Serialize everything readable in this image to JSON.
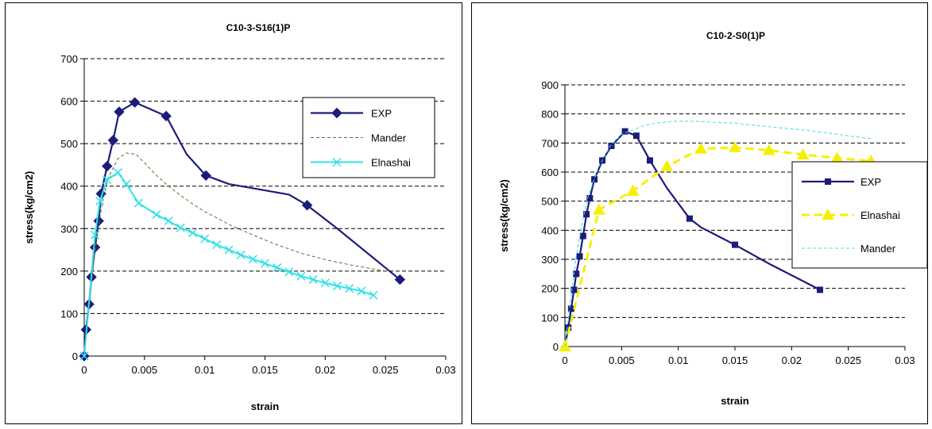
{
  "chart_data": [
    {
      "type": "line",
      "title": "C10-3-S16(1)P",
      "xlabel": "strain",
      "ylabel": "stress(kg/cm2)",
      "xlim": [
        0,
        0.03
      ],
      "ylim": [
        0,
        700
      ],
      "x_ticks": [
        "0",
        "0.005",
        "0.01",
        "0.015",
        "0.02",
        "0.025",
        "0.03"
      ],
      "y_ticks": [
        "0",
        "100",
        "200",
        "300",
        "400",
        "500",
        "600",
        "700"
      ],
      "grid": "horizontal dashed",
      "legend_position": "right",
      "legend": [
        "EXP",
        "Mander",
        "Elnashai"
      ],
      "series": [
        {
          "name": "EXP",
          "color": "#1c1c7a",
          "marker": "diamond",
          "points": [
            [
              0,
              0
            ],
            [
              0.00015,
              62
            ],
            [
              0.0004,
              122
            ],
            [
              0.0006,
              186
            ],
            [
              0.0009,
              256
            ],
            [
              0.0012,
              318
            ],
            [
              0.0014,
              382
            ],
            [
              0.0019,
              447
            ],
            [
              0.0024,
              508
            ],
            [
              0.0029,
              575
            ],
            [
              0.0042,
              597
            ],
            [
              0.0068,
              565
            ],
            [
              0.0085,
              475
            ],
            [
              0.0101,
              425
            ],
            [
              0.012,
              405
            ],
            [
              0.015,
              390
            ],
            [
              0.017,
              380
            ],
            [
              0.0185,
              355
            ],
            [
              0.021,
              300
            ],
            [
              0.0262,
              180
            ]
          ],
          "marker_points": [
            [
              0,
              0
            ],
            [
              0.00015,
              62
            ],
            [
              0.0004,
              122
            ],
            [
              0.0006,
              186
            ],
            [
              0.0009,
              256
            ],
            [
              0.0012,
              318
            ],
            [
              0.0014,
              382
            ],
            [
              0.0019,
              447
            ],
            [
              0.0024,
              508
            ],
            [
              0.0029,
              575
            ],
            [
              0.0042,
              597
            ],
            [
              0.0068,
              565
            ],
            [
              0.0101,
              425
            ],
            [
              0.0185,
              355
            ],
            [
              0.0262,
              180
            ]
          ]
        },
        {
          "name": "Mander",
          "color": "#6b6b2e",
          "marker": "none",
          "points": [
            [
              0,
              0
            ],
            [
              0.0005,
              150
            ],
            [
              0.001,
              270
            ],
            [
              0.0015,
              360
            ],
            [
              0.002,
              420
            ],
            [
              0.0028,
              465
            ],
            [
              0.0035,
              478
            ],
            [
              0.0043,
              475
            ],
            [
              0.005,
              455
            ],
            [
              0.006,
              425
            ],
            [
              0.007,
              400
            ],
            [
              0.008,
              378
            ],
            [
              0.009,
              358
            ],
            [
              0.01,
              340
            ],
            [
              0.012,
              310
            ],
            [
              0.014,
              285
            ],
            [
              0.016,
              262
            ],
            [
              0.018,
              242
            ],
            [
              0.02,
              227
            ],
            [
              0.022,
              215
            ],
            [
              0.025,
              200
            ]
          ]
        },
        {
          "name": "Elnashai",
          "color": "#33e0e8",
          "marker": "x",
          "points": [
            [
              0,
              0
            ],
            [
              0.0009,
              285
            ],
            [
              0.0013,
              365
            ],
            [
              0.0019,
              415
            ],
            [
              0.0028,
              432
            ],
            [
              0.0035,
              405
            ],
            [
              0.0045,
              360
            ],
            [
              0.006,
              333
            ],
            [
              0.007,
              318
            ],
            [
              0.008,
              302
            ],
            [
              0.009,
              290
            ],
            [
              0.01,
              276
            ],
            [
              0.011,
              262
            ],
            [
              0.012,
              250
            ],
            [
              0.013,
              238
            ],
            [
              0.014,
              228
            ],
            [
              0.015,
              218
            ],
            [
              0.016,
              208
            ],
            [
              0.017,
              198
            ],
            [
              0.018,
              188
            ],
            [
              0.019,
              180
            ],
            [
              0.02,
              172
            ],
            [
              0.021,
              165
            ],
            [
              0.022,
              159
            ],
            [
              0.023,
              153
            ],
            [
              0.024,
              143
            ]
          ]
        }
      ]
    },
    {
      "type": "line",
      "title": "C10-2-S0(1)P",
      "xlabel": "strain",
      "ylabel": "stress(kg/cm2)",
      "xlim": [
        0,
        0.03
      ],
      "ylim": [
        0,
        900
      ],
      "x_ticks": [
        "0",
        "0.005",
        "0.01",
        "0.015",
        "0.02",
        "0.025",
        "0.03"
      ],
      "y_ticks": [
        "0",
        "100",
        "200",
        "300",
        "400",
        "500",
        "600",
        "700",
        "800",
        "900"
      ],
      "grid": "horizontal dashed",
      "legend_position": "right",
      "legend": [
        "EXP",
        "Elnashai",
        "Mander"
      ],
      "series": [
        {
          "name": "EXP",
          "color": "#1c1c7a",
          "marker": "square",
          "points": [
            [
              0,
              0
            ],
            [
              0.0003,
              65
            ],
            [
              0.00055,
              130
            ],
            [
              0.0008,
              195
            ],
            [
              0.001,
              250
            ],
            [
              0.0013,
              310
            ],
            [
              0.0016,
              380
            ],
            [
              0.0019,
              455
            ],
            [
              0.0022,
              510
            ],
            [
              0.0026,
              575
            ],
            [
              0.0033,
              640
            ],
            [
              0.0041,
              690
            ],
            [
              0.0053,
              740
            ],
            [
              0.0063,
              725
            ],
            [
              0.0075,
              640
            ],
            [
              0.009,
              545
            ],
            [
              0.011,
              440
            ],
            [
              0.012,
              410
            ],
            [
              0.013,
              390
            ],
            [
              0.015,
              350
            ],
            [
              0.018,
              285
            ],
            [
              0.0225,
              195
            ]
          ],
          "marker_points": [
            [
              0.0003,
              65
            ],
            [
              0.00055,
              130
            ],
            [
              0.0008,
              195
            ],
            [
              0.001,
              250
            ],
            [
              0.0013,
              310
            ],
            [
              0.0016,
              380
            ],
            [
              0.0019,
              455
            ],
            [
              0.0022,
              510
            ],
            [
              0.0026,
              575
            ],
            [
              0.0033,
              640
            ],
            [
              0.0041,
              690
            ],
            [
              0.0053,
              740
            ],
            [
              0.0063,
              725
            ],
            [
              0.0075,
              640
            ],
            [
              0.011,
              440
            ],
            [
              0.015,
              350
            ],
            [
              0.0225,
              195
            ]
          ]
        },
        {
          "name": "Elnashai",
          "color": "#f5f000",
          "marker": "triangle",
          "points": [
            [
              0,
              0
            ],
            [
              0.003,
              470
            ],
            [
              0.006,
              535
            ],
            [
              0.009,
              620
            ],
            [
              0.012,
              680
            ],
            [
              0.015,
              685
            ],
            [
              0.018,
              675
            ],
            [
              0.021,
              660
            ],
            [
              0.024,
              648
            ],
            [
              0.027,
              638
            ]
          ],
          "marker_points": [
            [
              0,
              0
            ],
            [
              0.003,
              470
            ],
            [
              0.006,
              535
            ],
            [
              0.009,
              620
            ],
            [
              0.012,
              680
            ],
            [
              0.015,
              685
            ],
            [
              0.018,
              675
            ],
            [
              0.021,
              660
            ],
            [
              0.024,
              648
            ],
            [
              0.027,
              638
            ]
          ]
        },
        {
          "name": "Mander",
          "color": "#33e0e8",
          "marker": "none",
          "points": [
            [
              0,
              0
            ],
            [
              0.0005,
              160
            ],
            [
              0.001,
              310
            ],
            [
              0.0015,
              420
            ],
            [
              0.002,
              510
            ],
            [
              0.003,
              620
            ],
            [
              0.004,
              690
            ],
            [
              0.005,
              730
            ],
            [
              0.006,
              745
            ],
            [
              0.007,
              760
            ],
            [
              0.008,
              768
            ],
            [
              0.009,
              773
            ],
            [
              0.01,
              775
            ],
            [
              0.011,
              775
            ],
            [
              0.012,
              774
            ],
            [
              0.013,
              772
            ],
            [
              0.015,
              768
            ],
            [
              0.017,
              760
            ],
            [
              0.019,
              752
            ],
            [
              0.021,
              745
            ],
            [
              0.023,
              735
            ],
            [
              0.025,
              725
            ],
            [
              0.027,
              715
            ]
          ]
        }
      ]
    }
  ]
}
